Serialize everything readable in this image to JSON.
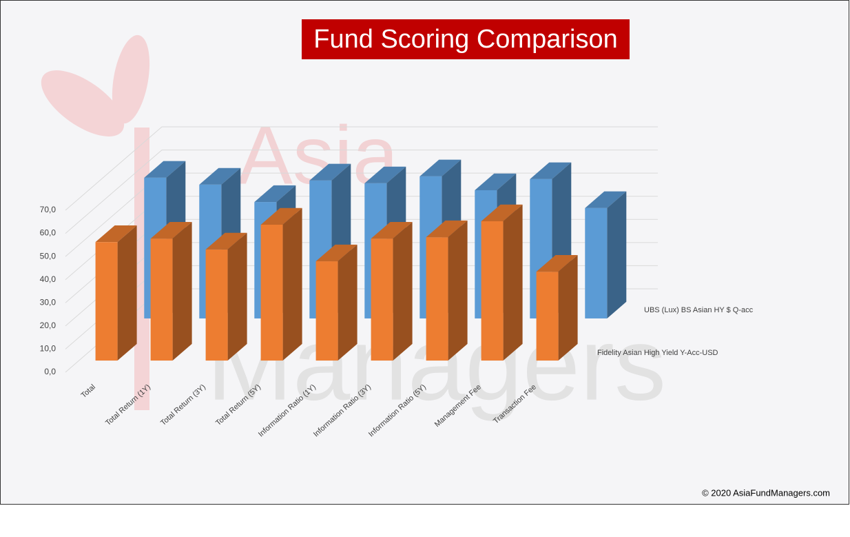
{
  "chart_data": {
    "type": "bar3d",
    "title": "Fund Scoring Comparison",
    "categories": [
      "Total",
      "Total Return (1Y)",
      "Total Return (3Y)",
      "Total Return (5Y)",
      "Information Ratio (1Y)",
      "Information Ratio (3Y)",
      "Information Ratio (5Y)",
      "Management Fee",
      "Transaction Fee"
    ],
    "series": [
      {
        "name": "UBS (Lux) BS Asian HY $ Q-acc",
        "color": "#5B9BD5",
        "values": [
          60.8,
          57.8,
          50.3,
          59.6,
          58.4,
          61.4,
          55.4,
          60.2,
          47.7
        ]
      },
      {
        "name": "Fidelity Asian High Yield Y-Acc-USD",
        "color": "#ED7D31",
        "values": [
          51.2,
          52.7,
          48.0,
          58.7,
          42.9,
          52.7,
          53.3,
          60.2,
          38.4
        ]
      }
    ],
    "ylim": [
      0,
      70
    ],
    "yticks": [
      {
        "value": 0,
        "label": "0,0"
      },
      {
        "value": 10,
        "label": "10,0"
      },
      {
        "value": 20,
        "label": "20,0"
      },
      {
        "value": 30,
        "label": "30,0"
      },
      {
        "value": 40,
        "label": "40,0"
      },
      {
        "value": 50,
        "label": "50,0"
      },
      {
        "value": 60,
        "label": "60,0"
      },
      {
        "value": 70,
        "label": "70,0"
      }
    ],
    "grid": true,
    "watermark": [
      "Asia",
      "Managers"
    ],
    "footer": "© 2020 AsiaFundManagers.com"
  }
}
